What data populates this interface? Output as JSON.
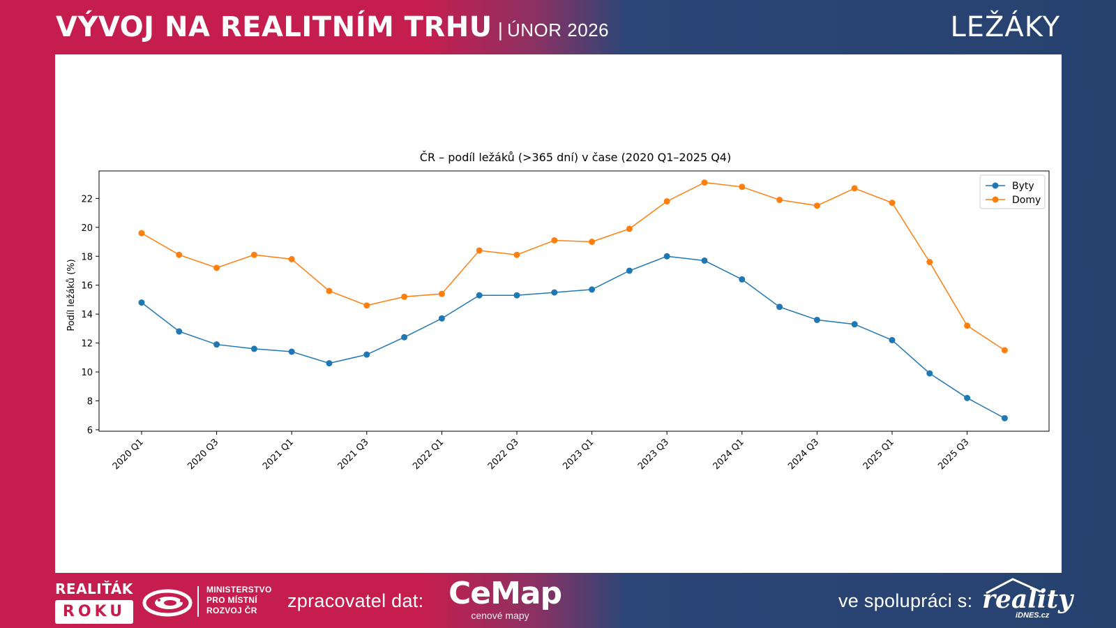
{
  "header": {
    "title": "VÝVOJ NA REALITNÍM TRHU",
    "separator": "|",
    "date": "ÚNOR 2026",
    "topic": "LEŽÁKY"
  },
  "footer": {
    "award_logo_top": "REALIŤÁK",
    "award_logo_bottom": "ROKU",
    "ministry_lines": [
      "MINISTERSTVO",
      "PRO MÍSTNÍ",
      "ROZVOJ ČR"
    ],
    "data_processor_label": "zpracovatel dat:",
    "processor_logo_text": "CeMap",
    "processor_logo_subtext": "cenové mapy",
    "collaboration_label": "ve spolupráci s:",
    "partner_logo_text": "reality",
    "partner_logo_subtext": "iDNES.cz"
  },
  "colors": {
    "brand_red": "#c51e4e",
    "brand_blue": "#26426f",
    "series_byty": "#1f77b4",
    "series_domy": "#ff7f0e"
  },
  "chart_data": {
    "type": "line",
    "title": "ČR – podíl ležáků (>365 dní) v čase (2020 Q1–2025 Q4)",
    "xlabel": "",
    "ylabel": "Podíl ležáků (%)",
    "ylim": [
      5.9,
      23.9
    ],
    "yticks": [
      6,
      8,
      10,
      12,
      14,
      16,
      18,
      20,
      22
    ],
    "grid": false,
    "legend_position": "top-right",
    "categories": [
      "2020 Q1",
      "2020 Q2",
      "2020 Q3",
      "2020 Q4",
      "2021 Q1",
      "2021 Q2",
      "2021 Q3",
      "2021 Q4",
      "2022 Q1",
      "2022 Q2",
      "2022 Q3",
      "2022 Q4",
      "2023 Q1",
      "2023 Q2",
      "2023 Q3",
      "2023 Q4",
      "2024 Q1",
      "2024 Q2",
      "2024 Q3",
      "2024 Q4",
      "2025 Q1",
      "2025 Q2",
      "2025 Q3",
      "2025 Q4"
    ],
    "tick_labels": [
      "2020 Q1",
      "2020 Q3",
      "2021 Q1",
      "2021 Q3",
      "2022 Q1",
      "2022 Q3",
      "2023 Q1",
      "2023 Q3",
      "2024 Q1",
      "2024 Q3",
      "2025 Q1",
      "2025 Q3"
    ],
    "series": [
      {
        "name": "Byty",
        "color": "#1f77b4",
        "values": [
          14.8,
          12.8,
          11.9,
          11.6,
          11.4,
          10.6,
          11.2,
          12.4,
          13.7,
          15.3,
          15.3,
          15.5,
          15.7,
          17.0,
          18.0,
          17.7,
          16.4,
          14.5,
          13.6,
          13.3,
          12.2,
          9.9,
          8.2,
          6.8
        ]
      },
      {
        "name": "Domy",
        "color": "#ff7f0e",
        "values": [
          19.6,
          18.1,
          17.2,
          18.1,
          17.8,
          15.6,
          14.6,
          15.2,
          15.4,
          18.4,
          18.1,
          19.1,
          19.0,
          19.9,
          21.8,
          23.1,
          22.8,
          21.9,
          21.5,
          22.7,
          21.7,
          17.6,
          13.2,
          11.5
        ]
      }
    ]
  }
}
